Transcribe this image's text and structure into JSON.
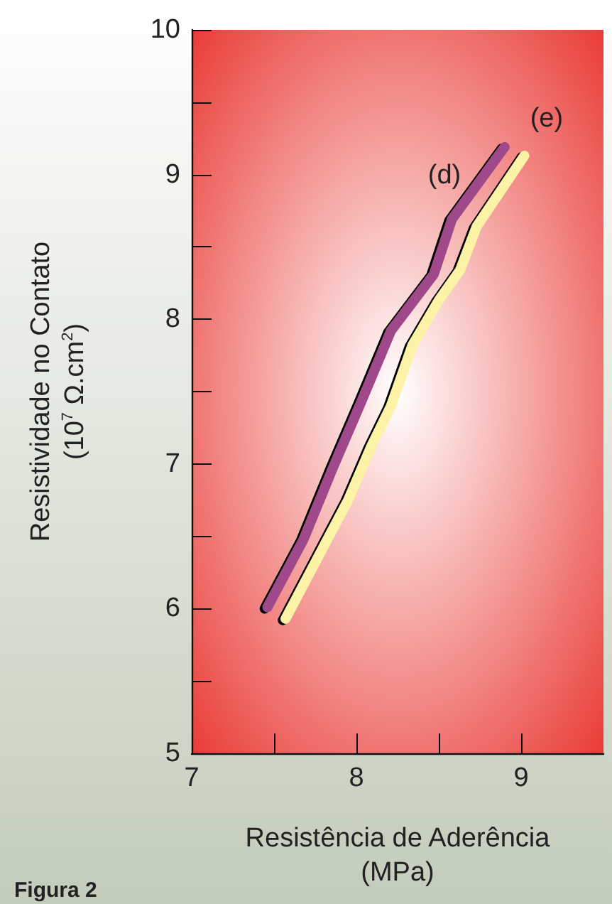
{
  "chart_data": {
    "type": "line",
    "xlabel": "Resistência de Aderência\n(MPa)",
    "ylabel": "Resistividade no Contato\n(10$^{7}$ Ω.cm$^{2}$)",
    "annotations": [
      "Figura 2"
    ],
    "xlim": [
      7,
      9.5
    ],
    "ylim": [
      5,
      10
    ],
    "xticks": [
      7,
      {
        "value": 7.5,
        "label": null
      },
      8,
      {
        "value": 8.5,
        "label": null
      },
      9
    ],
    "yticks": [
      5,
      {
        "value": 5.5,
        "label": null
      },
      6,
      {
        "value": 6.5,
        "label": null
      },
      7,
      {
        "value": 7.5,
        "label": null
      },
      8,
      {
        "value": 8.5,
        "label": null
      },
      9,
      {
        "value": 9.5,
        "label": null
      },
      10
    ],
    "grid": false,
    "legend": false,
    "line_style": "solid",
    "series": [
      {
        "name": "(d)",
        "color": "#a0488a",
        "x": [
          7.46,
          7.68,
          7.86,
          8.03,
          8.21,
          8.47,
          8.58,
          8.9
        ],
        "values": [
          6.01,
          6.48,
          6.98,
          7.43,
          7.92,
          8.31,
          8.69,
          9.19
        ]
      },
      {
        "name": "(e)",
        "color": "#fdf3a6",
        "x": [
          7.57,
          7.76,
          7.95,
          8.09,
          8.21,
          8.34,
          8.5,
          8.63,
          8.73,
          9.02
        ],
        "values": [
          5.93,
          6.34,
          6.75,
          7.12,
          7.4,
          7.82,
          8.13,
          8.34,
          8.64,
          9.13
        ]
      }
    ]
  }
}
